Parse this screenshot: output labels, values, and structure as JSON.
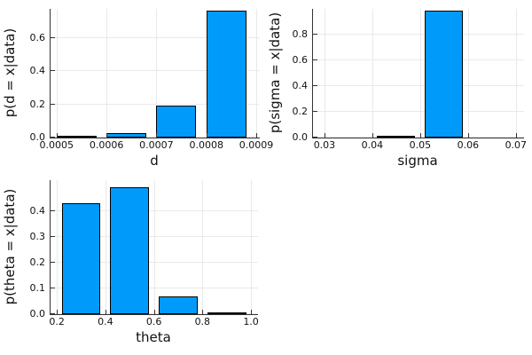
{
  "figure": {
    "background": "#ffffff"
  },
  "colors": {
    "bar_fill": "#009AFA",
    "bar_stroke": "#000000",
    "spine": "#333333",
    "grid": "#e9e9e9",
    "text": "#111111"
  },
  "chart_data": [
    {
      "id": "d",
      "type": "bar",
      "xlabel": "d",
      "ylabel": "p(d = x|data)",
      "xlim": [
        0.000488,
        0.000907
      ],
      "ylim": [
        0,
        0.777
      ],
      "grid": true,
      "legend_position": "none",
      "xticks": {
        "values": [
          0.0005,
          0.0006,
          0.0007,
          0.0008,
          0.0009
        ],
        "labels": [
          "0.0005",
          "0.0006",
          "0.0007",
          "0.0008",
          "0.0009"
        ]
      },
      "yticks": {
        "values": [
          0.0,
          0.2,
          0.4,
          0.6
        ],
        "labels": [
          "0.0",
          "0.2",
          "0.4",
          "0.6"
        ]
      },
      "bars": [
        {
          "x0": 0.0005,
          "x1": 0.00058,
          "height": 0.002
        },
        {
          "x0": 0.0006,
          "x1": 0.00068,
          "height": 0.027
        },
        {
          "x0": 0.0007,
          "x1": 0.00078,
          "height": 0.195
        },
        {
          "x0": 0.0008,
          "x1": 0.00088,
          "height": 0.768
        }
      ]
    },
    {
      "id": "sigma",
      "type": "bar",
      "xlabel": "sigma",
      "ylabel": "p(sigma = x|data)",
      "xlim": [
        0.0276,
        0.0717
      ],
      "ylim": [
        0,
        1.0
      ],
      "grid": true,
      "legend_position": "none",
      "xticks": {
        "values": [
          0.03,
          0.04,
          0.05,
          0.06,
          0.07
        ],
        "labels": [
          "0.03",
          "0.04",
          "0.05",
          "0.06",
          "0.07"
        ]
      },
      "yticks": {
        "values": [
          0.0,
          0.2,
          0.4,
          0.6,
          0.8
        ],
        "labels": [
          "0.0",
          "0.2",
          "0.4",
          "0.6",
          "0.8"
        ]
      },
      "bars": [
        {
          "x0": 0.041,
          "x1": 0.049,
          "height": 0.008
        },
        {
          "x0": 0.051,
          "x1": 0.059,
          "height": 0.988
        }
      ]
    },
    {
      "id": "theta",
      "type": "bar",
      "xlabel": "theta",
      "ylabel": "p(theta = x|data)",
      "xlim": [
        0.174,
        1.029
      ],
      "ylim": [
        0,
        0.52
      ],
      "grid": true,
      "legend_position": "none",
      "xticks": {
        "values": [
          0.2,
          0.4,
          0.6,
          0.8,
          1.0
        ],
        "labels": [
          "0.2",
          "0.4",
          "0.6",
          "0.8",
          "1.0"
        ]
      },
      "yticks": {
        "values": [
          0.0,
          0.1,
          0.2,
          0.3,
          0.4
        ],
        "labels": [
          "0.0",
          "0.1",
          "0.2",
          "0.3",
          "0.4"
        ]
      },
      "bars": [
        {
          "x0": 0.22,
          "x1": 0.38,
          "height": 0.432
        },
        {
          "x0": 0.42,
          "x1": 0.58,
          "height": 0.491
        },
        {
          "x0": 0.62,
          "x1": 0.78,
          "height": 0.069
        },
        {
          "x0": 0.82,
          "x1": 0.98,
          "height": 0.003
        }
      ]
    }
  ]
}
